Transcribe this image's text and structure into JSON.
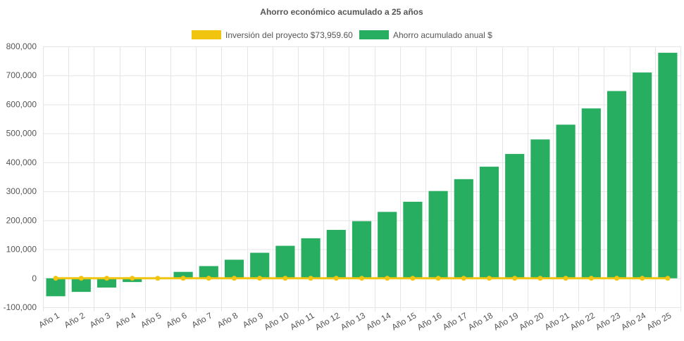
{
  "chart_data": {
    "type": "bar",
    "title": "Ahorro económico acumulado a 25 años",
    "legend_position": "top",
    "grid": true,
    "categories": [
      "Año 1",
      "Año 2",
      "Año 3",
      "Año 4",
      "Año 5",
      "Año 6",
      "Año 7",
      "Año 8",
      "Año 9",
      "Año 10",
      "Año 11",
      "Año 12",
      "Año 13",
      "Año 14",
      "Año 15",
      "Año 16",
      "Año 17",
      "Año 18",
      "Año 19",
      "Año 20",
      "Año 21",
      "Año 22",
      "Año 23",
      "Año 24",
      "Año 25"
    ],
    "ylim": [
      -100000,
      800000
    ],
    "yticks": [
      "800,000",
      "700,000",
      "600,000",
      "500,000",
      "400,000",
      "300,000",
      "200,000",
      "100,000",
      "0",
      "-100,000"
    ],
    "ytick_values": [
      800000,
      700000,
      600000,
      500000,
      400000,
      300000,
      200000,
      100000,
      0,
      -100000
    ],
    "series": [
      {
        "name": "Inversión del proyecto $73,959.60",
        "type": "line",
        "color": "#f1c40f",
        "values": [
          0,
          0,
          0,
          0,
          0,
          0,
          0,
          0,
          0,
          0,
          0,
          0,
          0,
          0,
          0,
          0,
          0,
          0,
          0,
          0,
          0,
          0,
          0,
          0,
          0
        ]
      },
      {
        "name": "Ahorro acumulado anual $",
        "type": "bar",
        "color": "#27ae60",
        "values": [
          -62000,
          -47000,
          -32000,
          -13000,
          0,
          22000,
          42000,
          64000,
          88000,
          112000,
          138000,
          167000,
          197000,
          229000,
          264000,
          301000,
          342000,
          385000,
          429000,
          479000,
          530000,
          586000,
          646000,
          710000,
          778000
        ]
      }
    ]
  }
}
